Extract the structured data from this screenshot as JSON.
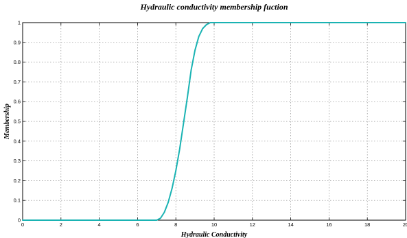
{
  "chart_data": {
    "type": "line",
    "title": "Hydraulic conductivity membership fuction",
    "xlabel": "Hydraulic Conductivity",
    "ylabel": "Membership",
    "xlim": [
      0,
      20
    ],
    "ylim": [
      0,
      1
    ],
    "xticks": [
      "0",
      "2",
      "4",
      "6",
      "8",
      "10",
      "12",
      "14",
      "16",
      "18",
      "20"
    ],
    "yticks": [
      "0",
      "0.1",
      "0.2",
      "0.3",
      "0.4",
      "0.5",
      "0.6",
      "0.7",
      "0.8",
      "0.9",
      "1"
    ],
    "grid": true,
    "series": [
      {
        "color": "#1ab3b3",
        "x": [
          0,
          6.8,
          7,
          7.2,
          7.4,
          7.6,
          7.8,
          8,
          8.2,
          8.4,
          8.6,
          8.8,
          9,
          9.2,
          9.4,
          9.6,
          9.8,
          10,
          12,
          14,
          16,
          18,
          20
        ],
        "y": [
          0,
          0,
          0,
          0.01,
          0.04,
          0.09,
          0.16,
          0.25,
          0.36,
          0.49,
          0.62,
          0.76,
          0.86,
          0.93,
          0.97,
          0.99,
          1,
          1,
          1,
          1,
          1,
          1,
          1
        ]
      }
    ]
  }
}
